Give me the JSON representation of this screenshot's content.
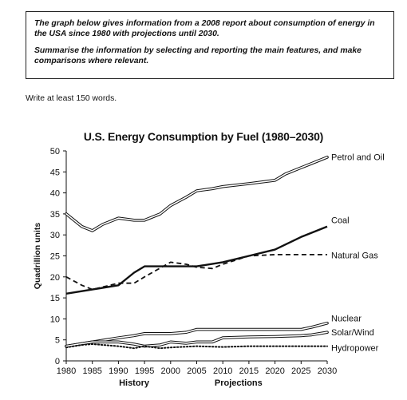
{
  "task": {
    "paragraph1": "The graph below gives information from a 2008 report about consumption of energy in the USA since 1980 with projections until 2030.",
    "paragraph2": "Summarise the information by selecting and reporting the main features, and make comparisons where relevant."
  },
  "instruction": "Write at least 150 words.",
  "chart_data": {
    "type": "line",
    "title": "U.S. Energy Consumption by Fuel (1980–2030)",
    "ylabel": "Quadrillion units",
    "xlabel": "",
    "x_annotations": [
      "History",
      "Projections"
    ],
    "xlim": [
      1980,
      2030
    ],
    "ylim": [
      0,
      50
    ],
    "x_ticks": [
      1980,
      1985,
      1990,
      1995,
      2000,
      2005,
      2010,
      2015,
      2020,
      2025,
      2030
    ],
    "y_ticks": [
      0,
      5,
      10,
      15,
      20,
      25,
      30,
      35,
      40,
      45,
      50
    ],
    "grid": false,
    "legend": "labels at line ends (right)",
    "series": [
      {
        "name": "Petrol and Oil",
        "style": "double",
        "x": [
          1980,
          1983,
          1985,
          1987,
          1990,
          1993,
          1995,
          1998,
          2000,
          2003,
          2005,
          2008,
          2010,
          2015,
          2020,
          2022,
          2025,
          2027,
          2030
        ],
        "y": [
          35,
          32,
          31,
          32.5,
          34,
          33.5,
          33.5,
          35,
          37,
          39,
          40.5,
          41,
          41.5,
          42.2,
          43,
          44.5,
          46,
          47,
          48.5
        ]
      },
      {
        "name": "Coal",
        "style": "solid",
        "x": [
          1980,
          1985,
          1990,
          1993,
          1995,
          2000,
          2005,
          2010,
          2015,
          2020,
          2025,
          2030
        ],
        "y": [
          16,
          17,
          18,
          21,
          22.5,
          22.5,
          22.5,
          23.5,
          25,
          26.5,
          29.5,
          32
        ]
      },
      {
        "name": "Natural Gas",
        "style": "dashed",
        "x": [
          1980,
          1983,
          1985,
          1990,
          1993,
          1995,
          2000,
          2003,
          2005,
          2008,
          2010,
          2015,
          2020,
          2025,
          2030
        ],
        "y": [
          20,
          18,
          17,
          18.5,
          18.5,
          20,
          23.5,
          23,
          22.3,
          22,
          23,
          25,
          25.3,
          25.3,
          25.3
        ]
      },
      {
        "name": "Nuclear",
        "style": "double",
        "x": [
          1980,
          1985,
          1990,
          1993,
          1995,
          2000,
          2003,
          2005,
          2010,
          2015,
          2020,
          2025,
          2027,
          2030
        ],
        "y": [
          3.5,
          4.5,
          5.5,
          6,
          6.5,
          6.5,
          6.8,
          7.5,
          7.5,
          7.5,
          7.5,
          7.5,
          8,
          9
        ]
      },
      {
        "name": "Solar/Wind",
        "style": "double",
        "x": [
          1980,
          1985,
          1990,
          1993,
          1995,
          1998,
          2000,
          2003,
          2005,
          2008,
          2010,
          2015,
          2020,
          2025,
          2027,
          2030
        ],
        "y": [
          3.5,
          4.5,
          4.5,
          4,
          3.5,
          3.8,
          4.5,
          4.2,
          4.5,
          4.5,
          5.5,
          5.7,
          5.8,
          6,
          6.2,
          6.8
        ]
      },
      {
        "name": "Hydropower",
        "style": "dotted",
        "x": [
          1980,
          1983,
          1985,
          1990,
          1993,
          1995,
          1998,
          2000,
          2005,
          2010,
          2015,
          2020,
          2025,
          2030
        ],
        "y": [
          3.2,
          3.8,
          4,
          3.5,
          3,
          3.5,
          3,
          3.2,
          3.5,
          3.3,
          3.5,
          3.5,
          3.5,
          3.5
        ]
      }
    ],
    "colors": {
      "line": "#111111",
      "double_fill": "#ffffff"
    }
  }
}
